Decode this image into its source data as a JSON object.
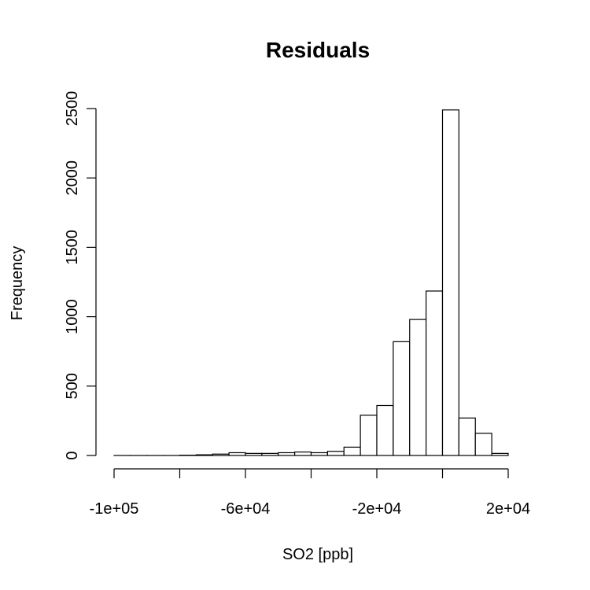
{
  "chart_data": {
    "type": "bar",
    "title": "Residuals",
    "xlabel": "SO2 [ppb]",
    "ylabel": "Frequency",
    "bin_width": 5000,
    "x_start": -100000,
    "counts": [
      0,
      0,
      0,
      0,
      2,
      5,
      10,
      20,
      15,
      15,
      20,
      25,
      20,
      30,
      60,
      290,
      360,
      820,
      980,
      1185,
      2490,
      270,
      160,
      15
    ],
    "x_ticks": [
      -100000,
      -80000,
      -60000,
      -40000,
      -20000,
      0,
      20000
    ],
    "x_tick_labels": [
      "-1e+05",
      "",
      "-6e+04",
      "",
      "-2e+04",
      "",
      "2e+04"
    ],
    "y_ticks": [
      0,
      500,
      1000,
      1500,
      2000,
      2500
    ],
    "y_tick_labels": [
      "0",
      "500",
      "1000",
      "1500",
      "2000",
      "2500"
    ],
    "xlim": [
      -100000,
      20000
    ],
    "ylim": [
      0,
      2500
    ]
  }
}
